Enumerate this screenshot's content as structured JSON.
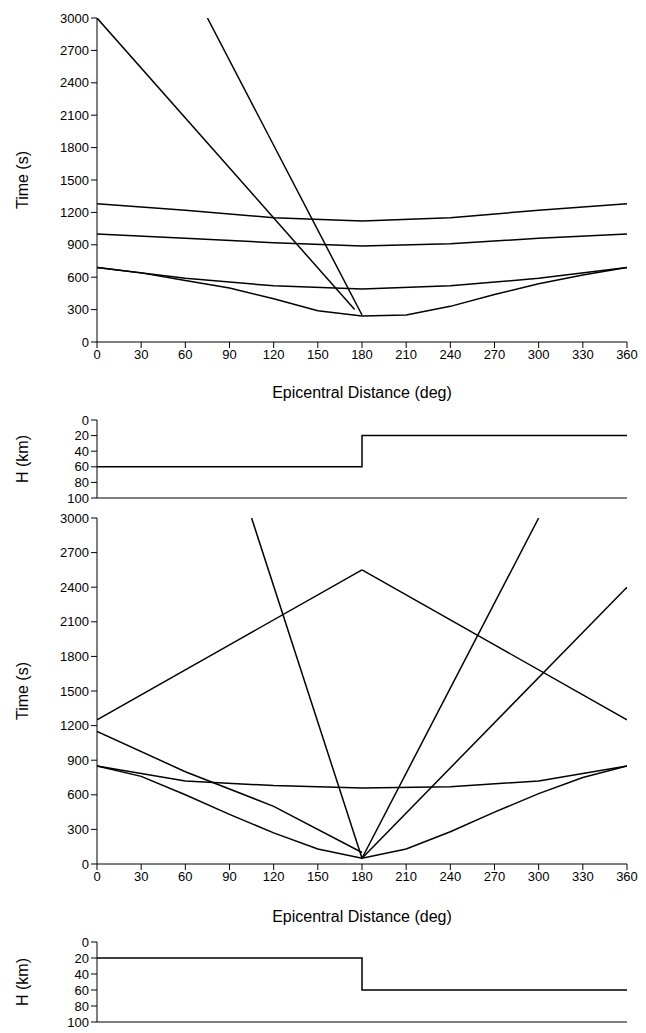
{
  "chart_data": [
    {
      "type": "line",
      "x_label": "Epicentral Distance (deg)",
      "y_label": "Time (s)",
      "xlim": [
        0,
        360
      ],
      "xticks": [
        0,
        30,
        60,
        90,
        120,
        150,
        180,
        210,
        240,
        270,
        300,
        330,
        360
      ],
      "ylim": [
        0,
        3000
      ],
      "yticks": [
        0,
        300,
        600,
        900,
        1200,
        1500,
        1800,
        2100,
        2400,
        2700,
        3000
      ],
      "grid": false,
      "series": [
        {
          "color": "#000000",
          "line_style": "solid",
          "x": [
            0,
            30,
            60,
            90,
            120,
            150,
            180,
            210,
            240,
            270,
            300,
            330,
            360
          ],
          "values": [
            690,
            640,
            570,
            500,
            400,
            290,
            240,
            250,
            330,
            440,
            540,
            620,
            690
          ]
        },
        {
          "color": "#000000",
          "line_style": "solid",
          "x": [
            0,
            60,
            120,
            180,
            240,
            300,
            360
          ],
          "values": [
            690,
            590,
            520,
            490,
            520,
            590,
            690
          ]
        },
        {
          "color": "#000000",
          "line_style": "solid",
          "x": [
            0,
            60,
            120,
            180,
            240,
            300,
            360
          ],
          "values": [
            1000,
            960,
            920,
            890,
            910,
            960,
            1000
          ]
        },
        {
          "color": "#000000",
          "line_style": "solid",
          "x": [
            0,
            60,
            120,
            180,
            240,
            300,
            360
          ],
          "values": [
            1280,
            1220,
            1150,
            1120,
            1150,
            1220,
            1280
          ]
        },
        {
          "color": "#000000",
          "line_style": "solid",
          "x": [
            0,
            175
          ],
          "values": [
            3000,
            300
          ]
        },
        {
          "color": "#000000",
          "line_style": "solid",
          "x": [
            75,
            180
          ],
          "values": [
            3000,
            250
          ]
        }
      ]
    },
    {
      "type": "line",
      "y_label": "H (km)",
      "tick_labels": "y",
      "xlim": [
        0,
        360
      ],
      "xticks": [
        0,
        30,
        60,
        90,
        120,
        150,
        180,
        210,
        240,
        270,
        300,
        330,
        360
      ],
      "ylim": [
        100,
        0
      ],
      "yticks": [
        0,
        20,
        40,
        60,
        80,
        100
      ],
      "grid": false,
      "series": [
        {
          "color": "#000000",
          "line_style": "solid",
          "x": [
            0,
            180,
            180,
            360
          ],
          "values": [
            60,
            60,
            20,
            20
          ]
        }
      ]
    },
    {
      "type": "line",
      "x_label": "Epicentral Distance (deg)",
      "y_label": "Time (s)",
      "xlim": [
        0,
        360
      ],
      "xticks": [
        0,
        30,
        60,
        90,
        120,
        150,
        180,
        210,
        240,
        270,
        300,
        330,
        360
      ],
      "ylim": [
        0,
        3000
      ],
      "yticks": [
        0,
        300,
        600,
        900,
        1200,
        1500,
        1800,
        2100,
        2400,
        2700,
        3000
      ],
      "grid": false,
      "series": [
        {
          "color": "#000000",
          "line_style": "solid",
          "x": [
            0,
            30,
            60,
            90,
            120,
            150,
            180,
            210,
            240,
            270,
            300,
            330,
            360
          ],
          "values": [
            850,
            760,
            600,
            430,
            270,
            130,
            50,
            130,
            280,
            450,
            610,
            750,
            850
          ]
        },
        {
          "color": "#000000",
          "line_style": "solid",
          "x": [
            0,
            60,
            120,
            180,
            240,
            300,
            360
          ],
          "values": [
            850,
            720,
            680,
            660,
            670,
            720,
            850
          ]
        },
        {
          "color": "#000000",
          "line_style": "solid",
          "x": [
            0,
            60,
            120,
            180
          ],
          "values": [
            1150,
            800,
            500,
            100
          ]
        },
        {
          "color": "#000000",
          "line_style": "solid",
          "x": [
            0,
            90,
            180
          ],
          "values": [
            1250,
            1900,
            2550
          ]
        },
        {
          "color": "#000000",
          "line_style": "solid",
          "x": [
            180,
            105
          ],
          "values": [
            50,
            3000
          ]
        },
        {
          "color": "#000000",
          "line_style": "solid",
          "x": [
            180,
            300
          ],
          "values": [
            50,
            3000
          ]
        },
        {
          "color": "#000000",
          "line_style": "solid",
          "x": [
            180,
            360
          ],
          "values": [
            50,
            2400
          ]
        },
        {
          "color": "#000000",
          "line_style": "solid",
          "x": [
            360,
            270,
            180
          ],
          "values": [
            1250,
            1900,
            2550
          ]
        }
      ]
    },
    {
      "type": "line",
      "y_label": "H (km)",
      "tick_labels": "y",
      "xlim": [
        0,
        360
      ],
      "xticks": [
        0,
        30,
        60,
        90,
        120,
        150,
        180,
        210,
        240,
        270,
        300,
        330,
        360
      ],
      "ylim": [
        100,
        0
      ],
      "yticks": [
        0,
        20,
        40,
        60,
        80,
        100
      ],
      "grid": false,
      "series": [
        {
          "color": "#000000",
          "line_style": "solid",
          "x": [
            0,
            180,
            180,
            360
          ],
          "values": [
            20,
            20,
            60,
            60
          ]
        }
      ]
    }
  ]
}
